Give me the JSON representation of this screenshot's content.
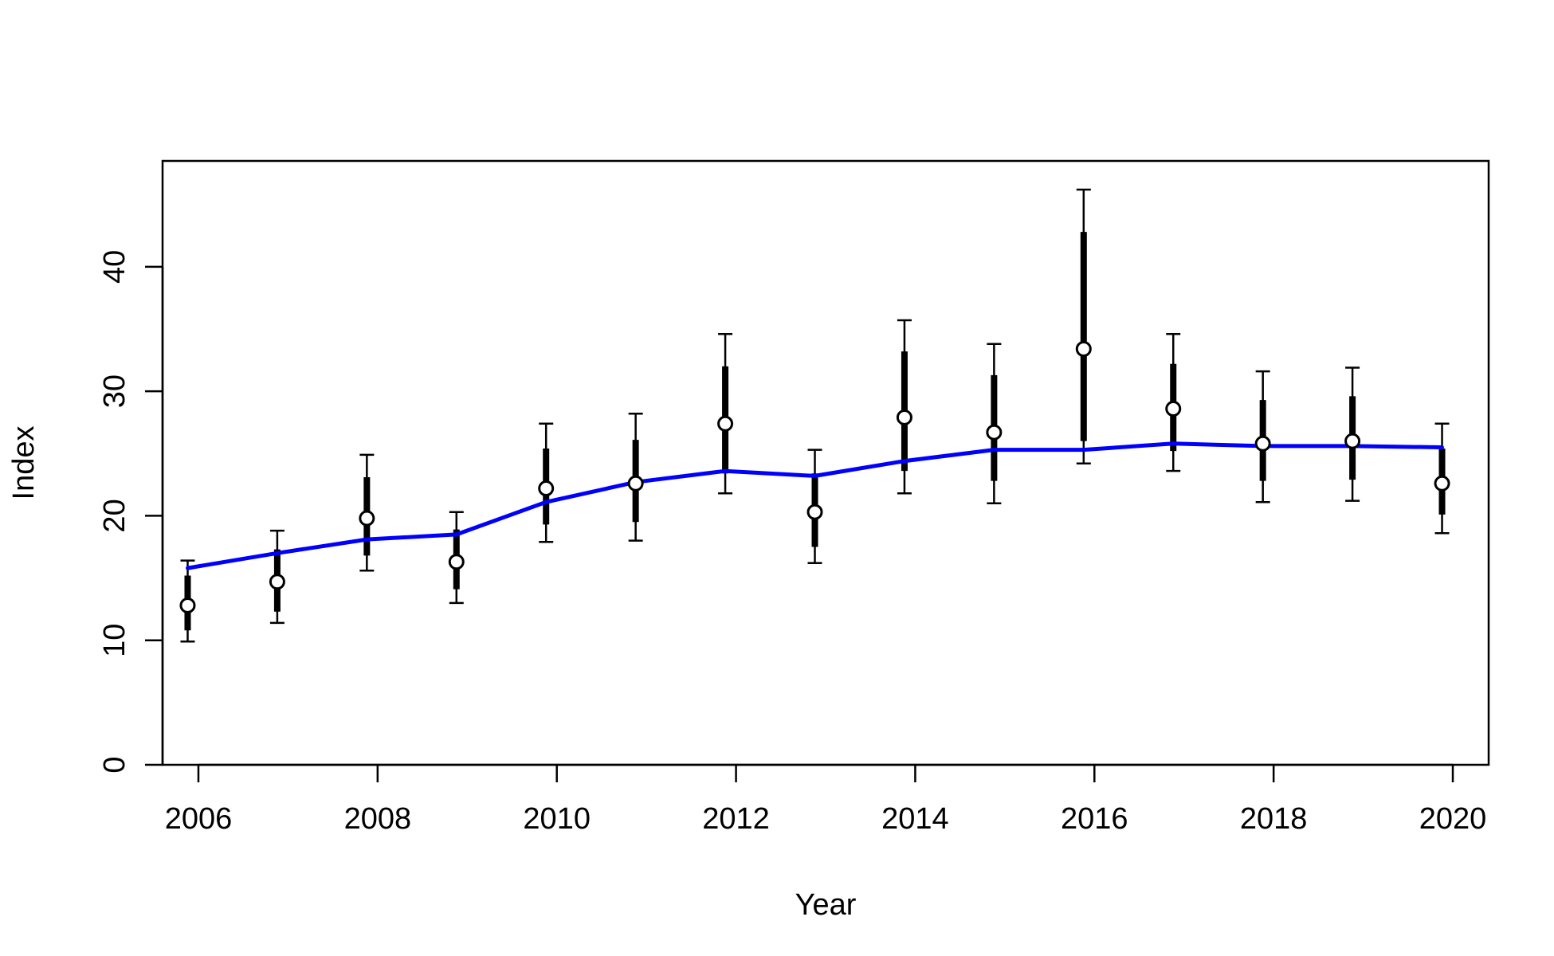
{
  "chart_data": {
    "type": "line",
    "title": "",
    "xlabel": "Year",
    "ylabel": "Index",
    "xlim": [
      2005.6,
      2020.4
    ],
    "ylim": [
      0,
      48.5
    ],
    "xticks": [
      "2006",
      "2008",
      "2010",
      "2012",
      "2014",
      "2016",
      "2018",
      "2020"
    ],
    "yticks": [
      "0",
      "10",
      "20",
      "30",
      "40"
    ],
    "grid": false,
    "legend": "none",
    "observed": {
      "x": [
        2005.88,
        2006.88,
        2007.88,
        2008.88,
        2009.88,
        2010.88,
        2011.88,
        2012.88,
        2013.88,
        2014.88,
        2015.88,
        2016.88,
        2017.88,
        2018.88,
        2019.88
      ],
      "y": [
        12.8,
        14.7,
        19.8,
        16.3,
        22.2,
        22.6,
        27.4,
        20.3,
        27.9,
        26.7,
        33.4,
        28.6,
        25.8,
        26.0,
        22.6
      ],
      "inner_lower": [
        10.8,
        12.3,
        16.8,
        14.1,
        19.3,
        19.5,
        23.4,
        17.5,
        23.6,
        22.8,
        26.0,
        25.2,
        22.8,
        22.9,
        20.1
      ],
      "inner_upper": [
        15.2,
        17.3,
        23.1,
        18.9,
        25.4,
        26.1,
        32.0,
        23.4,
        33.2,
        31.3,
        42.8,
        32.2,
        29.3,
        29.6,
        25.4
      ],
      "outer_lower": [
        9.9,
        11.4,
        15.6,
        13.0,
        17.9,
        18.0,
        21.8,
        16.2,
        21.8,
        21.0,
        24.2,
        23.6,
        21.1,
        21.2,
        18.6
      ],
      "outer_upper": [
        16.4,
        18.8,
        24.9,
        20.3,
        27.4,
        28.2,
        34.6,
        25.3,
        35.7,
        33.8,
        46.2,
        34.6,
        31.6,
        31.9,
        27.4
      ],
      "color": "#000000",
      "marker_fill": "#ffffff"
    },
    "fitted": {
      "x": [
        2005.88,
        2006.88,
        2007.88,
        2008.88,
        2009.88,
        2010.88,
        2011.88,
        2012.88,
        2013.88,
        2014.88,
        2015.88,
        2016.88,
        2017.88,
        2018.88,
        2019.88
      ],
      "y": [
        15.8,
        17.0,
        18.1,
        18.5,
        21.1,
        22.7,
        23.6,
        23.2,
        24.4,
        25.3,
        25.3,
        25.8,
        25.6,
        25.6,
        25.5
      ],
      "color": "#0000ff"
    }
  }
}
